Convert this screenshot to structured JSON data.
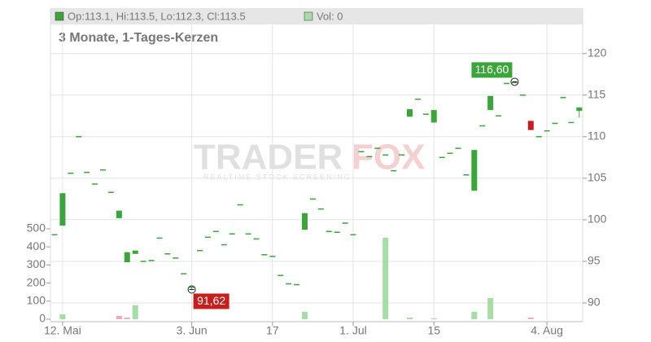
{
  "chart_data": {
    "type": "candlestick",
    "legend_text": "Op:113.1, Hi:113.5, Lo:112.3, Cl:113.5",
    "volume_legend": "Vol: 0",
    "subtitle": "3 Monate, 1-Tages-Kerzen",
    "watermark": {
      "brand_a": "TRADER",
      "brand_b": "FOX",
      "tagline": "REALTIME STOCK SCREENING"
    },
    "categories": [
      null,
      "12. Mai",
      null,
      null,
      null,
      null,
      null,
      null,
      null,
      null,
      null,
      null,
      null,
      null,
      null,
      null,
      null,
      "3. Jun",
      null,
      null,
      null,
      null,
      null,
      null,
      null,
      null,
      null,
      "17",
      null,
      null,
      null,
      null,
      null,
      null,
      null,
      null,
      null,
      "1. Jul",
      null,
      null,
      null,
      null,
      null,
      null,
      null,
      null,
      null,
      "15",
      null,
      null,
      null,
      null,
      null,
      null,
      null,
      null,
      null,
      null,
      null,
      null,
      null,
      "4. Aug",
      null,
      null,
      null,
      null
    ],
    "open": [
      98.2,
      99.3,
      105.6,
      110,
      105.7,
      104.3,
      106,
      103.3,
      100.2,
      94.9,
      95.9,
      95,
      95.1,
      97.8,
      95.9,
      95.4,
      93.5,
      91.9,
      96.3,
      97.9,
      98.6,
      97,
      98.3,
      101.8,
      98.3,
      97.7,
      95.8,
      95.6,
      93.3,
      92.3,
      92.2,
      98.8,
      102.5,
      101.3,
      98.6,
      98.5,
      99.6,
      98.2,
      108.2,
      107.6,
      108.6,
      107.8,
      105.9,
      107.8,
      112.4,
      114.5,
      112.7,
      111.7,
      107.5,
      108,
      108.6,
      105.4,
      103.5,
      111.3,
      113.2,
      112.5,
      116.4,
      116.5,
      115,
      111.9,
      110,
      110.7,
      111.6,
      114.7,
      111.7,
      113.1
    ],
    "high": [
      98.2,
      103.2,
      105.6,
      110,
      105.7,
      104.3,
      106,
      103.3,
      101.1,
      96.1,
      96.3,
      95,
      95.1,
      97.8,
      95.9,
      95.4,
      93.5,
      91.9,
      96.3,
      97.9,
      98.6,
      97,
      98.3,
      101.8,
      98.3,
      97.7,
      95.8,
      95.6,
      93.3,
      92.3,
      92.2,
      100.8,
      102.5,
      101.3,
      98.6,
      98.5,
      99.6,
      98.2,
      108.2,
      107.6,
      108.6,
      107.8,
      105.9,
      107.8,
      113.3,
      114.5,
      112.7,
      113.2,
      107.5,
      108,
      108.6,
      105.4,
      108.4,
      111.3,
      114.9,
      112.5,
      116.4,
      116.6,
      115,
      111.9,
      110,
      110.7,
      111.6,
      114.7,
      111.7,
      113.5
    ],
    "low": [
      98.2,
      99.3,
      105.6,
      110,
      105.7,
      104.3,
      106,
      103.3,
      100.2,
      94.9,
      95.9,
      95,
      95.1,
      97.8,
      95.9,
      95.4,
      93.5,
      91.62,
      96.3,
      97.9,
      98.6,
      97,
      98.3,
      101.8,
      98.3,
      97.7,
      95.8,
      95.6,
      93.3,
      92.3,
      92.2,
      98.8,
      102.5,
      101.3,
      98.6,
      98.5,
      99.6,
      98.2,
      108.2,
      107.6,
      108.6,
      107.8,
      105.9,
      107.8,
      112.4,
      114.5,
      112.7,
      111.7,
      107.5,
      108,
      108.6,
      105.4,
      103.5,
      111.3,
      113.2,
      112.5,
      116.4,
      116.5,
      115,
      110.8,
      110,
      110.7,
      111.6,
      114.7,
      111.7,
      112.3
    ],
    "close": [
      98.2,
      103.2,
      105.6,
      110,
      105.7,
      104.3,
      106,
      103.3,
      101.1,
      96.1,
      96.3,
      95,
      95.1,
      97.8,
      95.9,
      95.4,
      93.5,
      91.9,
      96.3,
      97.9,
      98.6,
      97,
      98.3,
      101.8,
      98.3,
      97.7,
      95.8,
      95.6,
      93.3,
      92.3,
      92.2,
      100.8,
      102.5,
      101.3,
      98.6,
      98.5,
      99.6,
      98.2,
      108.2,
      107.6,
      108.6,
      107.8,
      105.9,
      107.8,
      113.3,
      114.5,
      112.7,
      113.2,
      107.5,
      108,
      108.6,
      105.4,
      108.4,
      111.3,
      114.9,
      112.5,
      116.4,
      116.5,
      115,
      110.8,
      110,
      110.7,
      111.6,
      114.7,
      111.7,
      113.5
    ],
    "volume": [
      0,
      27,
      0,
      0,
      0,
      0,
      0,
      0,
      18,
      9,
      77,
      0,
      0,
      0,
      0,
      0,
      0,
      0,
      0,
      0,
      0,
      0,
      0,
      0,
      0,
      0,
      0,
      0,
      0,
      0,
      0,
      41,
      0,
      0,
      0,
      0,
      0,
      0,
      0,
      0,
      0,
      450,
      0,
      0,
      9,
      0,
      0,
      5,
      0,
      0,
      0,
      0,
      41,
      0,
      117,
      0,
      0,
      0,
      0,
      9,
      0,
      0,
      0,
      0,
      0,
      0
    ],
    "volume_colors": [
      "#a6dca6",
      "#a6dca6",
      "#a6dca6",
      "#a6dca6",
      "#a6dca6",
      "#a6dca6",
      "#a6dca6",
      "#a6dca6",
      "#f3aab5",
      "#f3aab5",
      "#a6dca6",
      "#a6dca6",
      "#a6dca6",
      "#a6dca6",
      "#a6dca6",
      "#a6dca6",
      "#a6dca6",
      "#a6dca6",
      "#a6dca6",
      "#a6dca6",
      "#a6dca6",
      "#a6dca6",
      "#a6dca6",
      "#a6dca6",
      "#a6dca6",
      "#a6dca6",
      "#a6dca6",
      "#a6dca6",
      "#a6dca6",
      "#a6dca6",
      "#a6dca6",
      "#a6dca6",
      "#a6dca6",
      "#a6dca6",
      "#a6dca6",
      "#a6dca6",
      "#a6dca6",
      "#a6dca6",
      "#a6dca6",
      "#a6dca6",
      "#a6dca6",
      "#a6dca6",
      "#a6dca6",
      "#a6dca6",
      "#a6dca6",
      "#a6dca6",
      "#a6dca6",
      "#a6dca6",
      "#a6dca6",
      "#a6dca6",
      "#a6dca6",
      "#a6dca6",
      "#a6dca6",
      "#a6dca6",
      "#a6dca6",
      "#a6dca6",
      "#a6dca6",
      "#a6dca6",
      "#a6dca6",
      "#f3aab5",
      "#a6dca6",
      "#a6dca6",
      "#a6dca6",
      "#a6dca6",
      "#a6dca6",
      "#a6dca6"
    ],
    "up_color": "#3aa63a",
    "down_color": "#c81e1e",
    "ylim": [
      87.75,
      123.5
    ],
    "yticks": [
      90,
      95,
      100,
      105,
      110,
      115,
      120
    ],
    "y2lim": [
      0,
      1630
    ],
    "y2ticks": [
      0,
      100,
      200,
      300,
      400,
      500
    ],
    "high_label": {
      "value": 116.6,
      "label": "116,60"
    },
    "low_label": {
      "value": 91.62,
      "label": "91,62"
    },
    "grid": true
  }
}
